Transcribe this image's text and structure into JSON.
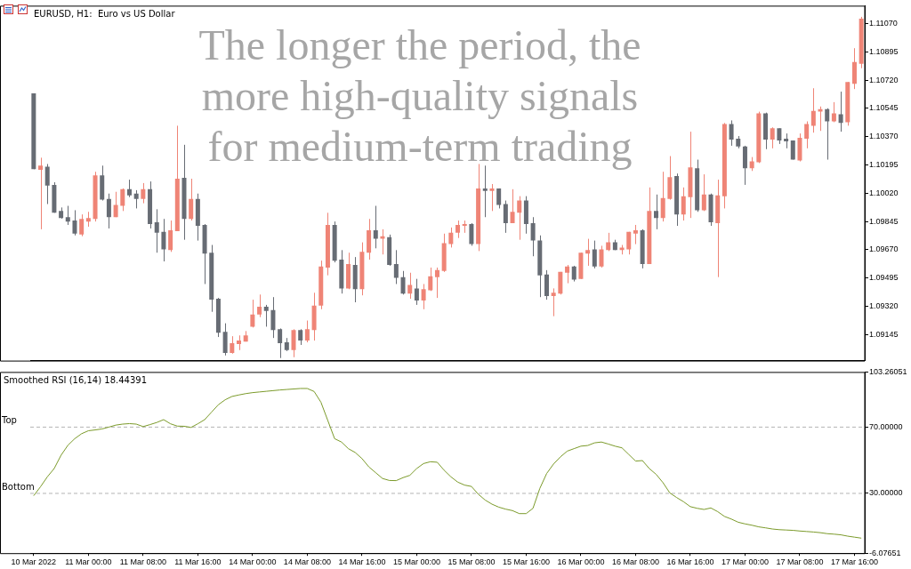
{
  "chart_data": [
    {
      "type": "candlestick",
      "title": "EURUSD, H1:  Euro vs US Dollar",
      "annotations": [
        "The longer the period, the more high-quality signals for medium-term trading"
      ],
      "categories": [
        null,
        null,
        null,
        null,
        null,
        null,
        null,
        null,
        null,
        null,
        null,
        null,
        null,
        null,
        null,
        null,
        null,
        null,
        null,
        null,
        null,
        null,
        null,
        null,
        null,
        null,
        null,
        null,
        null,
        null,
        null,
        null,
        null,
        null,
        null,
        null,
        null,
        null,
        null,
        null,
        null,
        null,
        null,
        null,
        null,
        null,
        null,
        null,
        null,
        null,
        null,
        null,
        null,
        null,
        null,
        null,
        null,
        null,
        null,
        null,
        null,
        null,
        null,
        null,
        null,
        null,
        null,
        null,
        null,
        null,
        null,
        null,
        null,
        null,
        null,
        null,
        null,
        null,
        null,
        null,
        null,
        null,
        null,
        null,
        null,
        null,
        null,
        null,
        null,
        null,
        null,
        null,
        null,
        null,
        null,
        null,
        null,
        null,
        null,
        null,
        null,
        null,
        null,
        null,
        null,
        null,
        null,
        null,
        null,
        null,
        null,
        null,
        null,
        null,
        null,
        null,
        null,
        null,
        null,
        null,
        null,
        null
      ],
      "ohlc": [
        [
          1.10638,
          1.10638,
          1.10169,
          1.10169
        ],
        [
          1.10165,
          1.1024,
          1.09797,
          1.10191
        ],
        [
          1.10185,
          1.10201,
          1.09953,
          1.10068
        ],
        [
          1.10072,
          1.10088,
          1.09899,
          1.09899
        ],
        [
          1.0991,
          1.09932,
          1.09863,
          1.09867
        ],
        [
          1.09872,
          1.09942,
          1.09824,
          1.09845
        ],
        [
          1.09851,
          1.09915,
          1.09759,
          1.0977
        ],
        [
          1.09764,
          1.09889,
          1.09754,
          1.09861
        ],
        [
          1.09845,
          1.09905,
          1.09813,
          1.09867
        ],
        [
          1.09861,
          1.10153,
          1.09845,
          1.10131
        ],
        [
          1.10131,
          1.10191,
          1.09975,
          1.0998
        ],
        [
          1.09985,
          1.10018,
          1.09802,
          1.09872
        ],
        [
          1.09872,
          1.10029,
          1.09872,
          1.09948
        ],
        [
          1.09942,
          1.1005,
          1.0991,
          1.10045
        ],
        [
          1.10045,
          1.10104,
          1.09996,
          1.10007
        ],
        [
          1.10018,
          1.10039,
          1.09926,
          1.09985
        ],
        [
          1.09985,
          1.10083,
          1.09958,
          1.10045
        ],
        [
          1.10045,
          1.10093,
          1.09802,
          1.09829
        ],
        [
          1.0984,
          1.09921,
          1.09652,
          1.09775
        ],
        [
          1.09781,
          1.09861,
          1.09598,
          1.09673
        ],
        [
          1.09668,
          1.09851,
          1.09657,
          1.09791
        ],
        [
          1.09786,
          1.10438,
          1.09786,
          1.1011
        ],
        [
          1.10115,
          1.1032,
          1.09732,
          1.09861
        ],
        [
          1.09861,
          1.1011,
          1.09851,
          1.09985
        ],
        [
          1.09985,
          1.10018,
          1.09727,
          1.09818
        ],
        [
          1.09824,
          1.09829,
          1.09458,
          1.09646
        ],
        [
          1.09652,
          1.097,
          1.09286,
          1.09361
        ],
        [
          1.09367,
          1.09372,
          1.0913,
          1.09156
        ],
        [
          1.09162,
          1.09215,
          1.09016,
          1.09032
        ],
        [
          1.09032,
          1.09135,
          1.09027,
          1.09092
        ],
        [
          1.09086,
          1.0914,
          1.09049,
          1.09108
        ],
        [
          1.09102,
          1.09167,
          1.09102,
          1.0914
        ],
        [
          1.09194,
          1.09361,
          1.09189,
          1.0927
        ],
        [
          1.0927,
          1.09393,
          1.09253,
          1.09318
        ],
        [
          1.09318,
          1.09329,
          1.09194,
          1.09291
        ],
        [
          1.09297,
          1.09377,
          1.09124,
          1.09173
        ],
        [
          1.09178,
          1.09183,
          1.09,
          1.09092
        ],
        [
          1.09097,
          1.09124,
          1.09043,
          1.09049
        ],
        [
          1.09049,
          1.09178,
          1.09005,
          1.09173
        ],
        [
          1.09173,
          1.09178,
          1.09081,
          1.09108
        ],
        [
          1.09108,
          1.09232,
          1.09097,
          1.09178
        ],
        [
          1.09173,
          1.09404,
          1.09108,
          1.09324
        ],
        [
          1.09324,
          1.09603,
          1.09302,
          1.09566
        ],
        [
          1.0956,
          1.09899,
          1.09512,
          1.09824
        ],
        [
          1.09824,
          1.09845,
          1.09592,
          1.09603
        ],
        [
          1.09609,
          1.09668,
          1.09399,
          1.09431
        ],
        [
          1.09431,
          1.09652,
          1.09426,
          1.09582
        ],
        [
          1.09576,
          1.09625,
          1.09345,
          1.09426
        ],
        [
          1.09426,
          1.09716,
          1.09388,
          1.09657
        ],
        [
          1.09652,
          1.09861,
          1.09609,
          1.09791
        ],
        [
          1.09791,
          1.09942,
          1.09679,
          1.09738
        ],
        [
          1.09738,
          1.09797,
          1.09641,
          1.09754
        ],
        [
          1.09748,
          1.09764,
          1.09571,
          1.09576
        ],
        [
          1.09582,
          1.09668,
          1.09458,
          1.09496
        ],
        [
          1.09501,
          1.09539,
          1.09393,
          1.09399
        ],
        [
          1.09399,
          1.09528,
          1.09367,
          1.09453
        ],
        [
          1.09431,
          1.0949,
          1.09329,
          1.09356
        ],
        [
          1.09356,
          1.09458,
          1.09302,
          1.09426
        ],
        [
          1.0942,
          1.0956,
          1.09415,
          1.09506
        ],
        [
          1.09501,
          1.0956,
          1.09372,
          1.09544
        ],
        [
          1.09539,
          1.0977,
          1.09533,
          1.09711
        ],
        [
          1.09705,
          1.09808,
          1.09684,
          1.09775
        ],
        [
          1.09775,
          1.09851,
          1.09743,
          1.09824
        ],
        [
          1.09818,
          1.09851,
          1.09775,
          1.09829
        ],
        [
          1.09829,
          1.09835,
          1.09695,
          1.09705
        ],
        [
          1.09705,
          1.10201,
          1.09662,
          1.1005
        ],
        [
          1.1005,
          1.10191,
          1.09872,
          1.10034
        ],
        [
          1.10034,
          1.10077,
          1.0991,
          1.1005
        ],
        [
          1.1005,
          1.1005,
          1.09926,
          1.09948
        ],
        [
          1.09953,
          1.09975,
          1.09775,
          1.09835
        ],
        [
          1.09835,
          1.10045,
          1.09835,
          1.09905
        ],
        [
          1.09899,
          1.10002,
          1.09732,
          1.09975
        ],
        [
          1.09975,
          1.10002,
          1.0977,
          1.09829
        ],
        [
          1.09835,
          1.09872,
          1.0963,
          1.09727
        ],
        [
          1.09727,
          1.09759,
          1.09377,
          1.09512
        ],
        [
          1.09517,
          1.09544,
          1.09361,
          1.09383
        ],
        [
          1.09383,
          1.09431,
          1.09259,
          1.09404
        ],
        [
          1.09399,
          1.09533,
          1.09393,
          1.09533
        ],
        [
          1.09528,
          1.09576,
          1.09463,
          1.09566
        ],
        [
          1.09566,
          1.09571,
          1.09474,
          1.09485
        ],
        [
          1.0949,
          1.09652,
          1.0949,
          1.09652
        ],
        [
          1.09646,
          1.09738,
          1.09571,
          1.09668
        ],
        [
          1.09673,
          1.09727,
          1.09555,
          1.09566
        ],
        [
          1.09566,
          1.09695,
          1.0956,
          1.09673
        ],
        [
          1.09668,
          1.09775,
          1.09662,
          1.09716
        ],
        [
          1.09716,
          1.09732,
          1.09668,
          1.09668
        ],
        [
          1.09668,
          1.097,
          1.09641,
          1.09684
        ],
        [
          1.09673,
          1.09781,
          1.09641,
          1.09781
        ],
        [
          1.0977,
          1.09824,
          1.09705,
          1.09791
        ],
        [
          1.09791,
          1.09797,
          1.09555,
          1.09582
        ],
        [
          1.09582,
          1.10056,
          1.09582,
          1.0991
        ],
        [
          1.0991,
          1.10012,
          1.09797,
          1.09867
        ],
        [
          1.09867,
          1.10153,
          1.09845,
          1.09991
        ],
        [
          1.09985,
          1.1025,
          1.0998,
          1.1012
        ],
        [
          1.10126,
          1.10142,
          1.09818,
          1.09889
        ],
        [
          1.09889,
          1.10056,
          1.09851,
          1.10002
        ],
        [
          1.09996,
          1.10401,
          1.09867,
          1.1018
        ],
        [
          1.10174,
          1.10228,
          1.09905,
          1.09915
        ],
        [
          1.09915,
          1.10137,
          1.0991,
          1.10012
        ],
        [
          1.10012,
          1.10018,
          1.09818,
          1.0984
        ],
        [
          1.09835,
          1.10104,
          1.09501,
          1.10007
        ],
        [
          1.10002,
          1.10455,
          1.09926,
          1.10449
        ],
        [
          1.10449,
          1.10471,
          1.10314,
          1.10352
        ],
        [
          1.10358,
          1.10374,
          1.10298,
          1.10309
        ],
        [
          1.10309,
          1.10314,
          1.10072,
          1.10174
        ],
        [
          1.10174,
          1.10244,
          1.10158,
          1.10217
        ],
        [
          1.10212,
          1.10525,
          1.10207,
          1.10514
        ],
        [
          1.10514,
          1.10519,
          1.10293,
          1.10352
        ],
        [
          1.10352,
          1.10428,
          1.10298,
          1.10422
        ],
        [
          1.10422,
          1.10422,
          1.10325,
          1.10347
        ],
        [
          1.10358,
          1.1039,
          1.10298,
          1.10341
        ],
        [
          1.10347,
          1.10347,
          1.10228,
          1.10228
        ],
        [
          1.10223,
          1.1039,
          1.10217,
          1.10363
        ],
        [
          1.10358,
          1.10465,
          1.10298,
          1.10449
        ],
        [
          1.10438,
          1.1067,
          1.10395,
          1.1053
        ],
        [
          1.10525,
          1.10557,
          1.10406,
          1.10541
        ],
        [
          1.10541,
          1.10546,
          1.10228,
          1.10465
        ],
        [
          1.10465,
          1.10584,
          1.1046,
          1.10514
        ],
        [
          1.10509,
          1.10649,
          1.10401,
          1.10455
        ],
        [
          1.1046,
          1.10708,
          1.10438,
          1.10708
        ],
        [
          1.10697,
          1.10918,
          1.10665,
          1.10832
        ],
        [
          1.10821,
          1.11112,
          1.10794,
          1.11101
        ]
      ],
      "colors": [
        "#676c74",
        "#ef8476",
        "#676c74",
        "#676c74",
        "#676c74",
        "#676c74",
        "#676c74",
        "#ef8476",
        "#ef8476",
        "#ef8476",
        "#676c74",
        "#676c74",
        "#ef8476",
        "#ef8476",
        "#676c74",
        "#676c74",
        "#ef8476",
        "#676c74",
        "#676c74",
        "#676c74",
        "#ef8476",
        "#ef8476",
        "#676c74",
        "#ef8476",
        "#676c74",
        "#676c74",
        "#676c74",
        "#676c74",
        "#676c74",
        "#ef8476",
        "#ef8476",
        "#ef8476",
        "#ef8476",
        "#ef8476",
        "#676c74",
        "#676c74",
        "#676c74",
        "#676c74",
        "#ef8476",
        "#676c74",
        "#ef8476",
        "#ef8476",
        "#ef8476",
        "#ef8476",
        "#676c74",
        "#676c74",
        "#ef8476",
        "#676c74",
        "#ef8476",
        "#ef8476",
        "#676c74",
        "#ef8476",
        "#676c74",
        "#676c74",
        "#676c74",
        "#ef8476",
        "#676c74",
        "#ef8476",
        "#ef8476",
        "#ef8476",
        "#ef8476",
        "#ef8476",
        "#ef8476",
        "#ef8476",
        "#676c74",
        "#ef8476",
        "#676c74",
        "#ef8476",
        "#676c74",
        "#676c74",
        "#ef8476",
        "#ef8476",
        "#676c74",
        "#676c74",
        "#676c74",
        "#676c74",
        "#ef8476",
        "#ef8476",
        "#ef8476",
        "#676c74",
        "#ef8476",
        "#ef8476",
        "#676c74",
        "#ef8476",
        "#ef8476",
        "#676c74",
        "#ef8476",
        "#ef8476",
        "#ef8476",
        "#676c74",
        "#ef8476",
        "#676c74",
        "#ef8476",
        "#ef8476",
        "#676c74",
        "#ef8476",
        "#ef8476",
        "#676c74",
        "#ef8476",
        "#676c74",
        "#ef8476",
        "#ef8476",
        "#676c74",
        "#676c74",
        "#676c74",
        "#ef8476",
        "#ef8476",
        "#676c74",
        "#ef8476",
        "#676c74",
        "#676c74",
        "#676c74",
        "#ef8476",
        "#ef8476",
        "#ef8476",
        "#ef8476",
        "#676c74",
        "#ef8476",
        "#676c74",
        "#ef8476",
        "#ef8476",
        "#ef8476"
      ],
      "ylim": [
        1.08984,
        1.11181
      ],
      "yticks": [
        {
          "value": 1.09145,
          "label": "1.09145"
        },
        {
          "value": 1.0932,
          "label": "1.09320"
        },
        {
          "value": 1.09495,
          "label": "1.09495"
        },
        {
          "value": 1.0967,
          "label": "1.09670"
        },
        {
          "value": 1.09845,
          "label": "1.09845"
        },
        {
          "value": 1.1002,
          "label": "1.10020"
        },
        {
          "value": 1.10195,
          "label": "1.10195"
        },
        {
          "value": 1.1037,
          "label": "1.10370"
        },
        {
          "value": 1.10545,
          "label": "1.10545"
        },
        {
          "value": 1.1072,
          "label": "1.10720"
        },
        {
          "value": 1.10895,
          "label": "1.10895"
        },
        {
          "value": 1.1107,
          "label": "1.11070"
        }
      ],
      "tick_labels": "y"
    },
    {
      "type": "line",
      "title": "Smoothed RSI (16,14) 18.44391",
      "categories": [
        "10 Mar 2022",
        null,
        null,
        null,
        null,
        null,
        null,
        null,
        "11 Mar 00:00",
        null,
        null,
        null,
        null,
        null,
        null,
        null,
        "11 Mar 08:00",
        null,
        null,
        null,
        null,
        null,
        null,
        null,
        "11 Mar 16:00",
        null,
        null,
        null,
        null,
        null,
        null,
        null,
        "14 Mar 00:00",
        null,
        null,
        null,
        null,
        null,
        null,
        null,
        "14 Mar 08:00",
        null,
        null,
        null,
        null,
        null,
        null,
        null,
        "14 Mar 16:00",
        null,
        null,
        null,
        null,
        null,
        null,
        null,
        "15 Mar 00:00",
        null,
        null,
        null,
        null,
        null,
        null,
        null,
        "15 Mar 08:00",
        null,
        null,
        null,
        null,
        null,
        null,
        null,
        "15 Mar 16:00",
        null,
        null,
        null,
        null,
        null,
        null,
        null,
        "16 Mar 00:00",
        null,
        null,
        null,
        null,
        null,
        null,
        null,
        "16 Mar 08:00",
        null,
        null,
        null,
        null,
        null,
        null,
        null,
        "16 Mar 16:00",
        null,
        null,
        null,
        null,
        null,
        null,
        null,
        "17 Mar 00:00",
        null,
        null,
        null,
        null,
        null,
        null,
        null,
        "17 Mar 08:00",
        null,
        null,
        null,
        null,
        null,
        null,
        null,
        "17 Mar 16:00",
        null
      ],
      "series": [
        {
          "color": "#7b9a2a",
          "values": [
            28.6,
            34,
            40,
            45,
            53,
            59,
            63,
            66,
            67.8,
            68.3,
            68.9,
            70,
            71.2,
            71.8,
            72.1,
            71.8,
            70.3,
            71.5,
            72.8,
            74.5,
            72,
            70.6,
            70.5,
            69.8,
            72,
            74.5,
            79,
            83.5,
            86.5,
            88.5,
            89.4,
            90.2,
            90.8,
            91.2,
            91.6,
            92,
            92.4,
            92.7,
            93,
            93.3,
            93.3,
            91.5,
            85,
            74,
            63,
            61,
            57,
            54.7,
            51,
            46,
            42.5,
            39,
            37.8,
            37.7,
            39.5,
            40.9,
            45,
            48,
            49.1,
            48.8,
            44,
            40,
            36.8,
            35,
            34.2,
            29.5,
            26,
            23.5,
            21.7,
            20.5,
            19.6,
            17.8,
            17.8,
            21,
            33,
            42,
            47.7,
            52,
            55.5,
            57,
            58.5,
            58.9,
            60.5,
            61,
            59.8,
            58.5,
            57.5,
            53.5,
            49.5,
            49.8,
            45,
            41.5,
            36.5,
            30.3,
            27.5,
            25,
            22,
            21,
            20.3,
            21.2,
            19,
            16.1,
            14.5,
            12.6,
            11.6,
            10.8,
            9.8,
            9.2,
            8.5,
            8.1,
            7.9,
            7.7,
            7.3,
            7,
            6.7,
            6.3,
            5.7,
            5.4,
            5,
            4.2,
            3.6,
            3
          ]
        }
      ],
      "ylim": [
        -6.07651,
        103.26051
      ],
      "yticks": [
        -6.07651,
        {
          "value": 30,
          "label": "30.00000"
        },
        {
          "value": 70,
          "label": "70.00000"
        },
        103.26051
      ],
      "ref_lines": [
        {
          "axis": "y",
          "value": 70,
          "label": "Top",
          "color": "#b4b4b4",
          "line_style": "dashed"
        },
        {
          "axis": "y",
          "value": 30,
          "label": "Bottom",
          "color": "#b4b4b4",
          "line_style": "dashed"
        }
      ],
      "marker": "none",
      "line_style": "solid"
    }
  ]
}
